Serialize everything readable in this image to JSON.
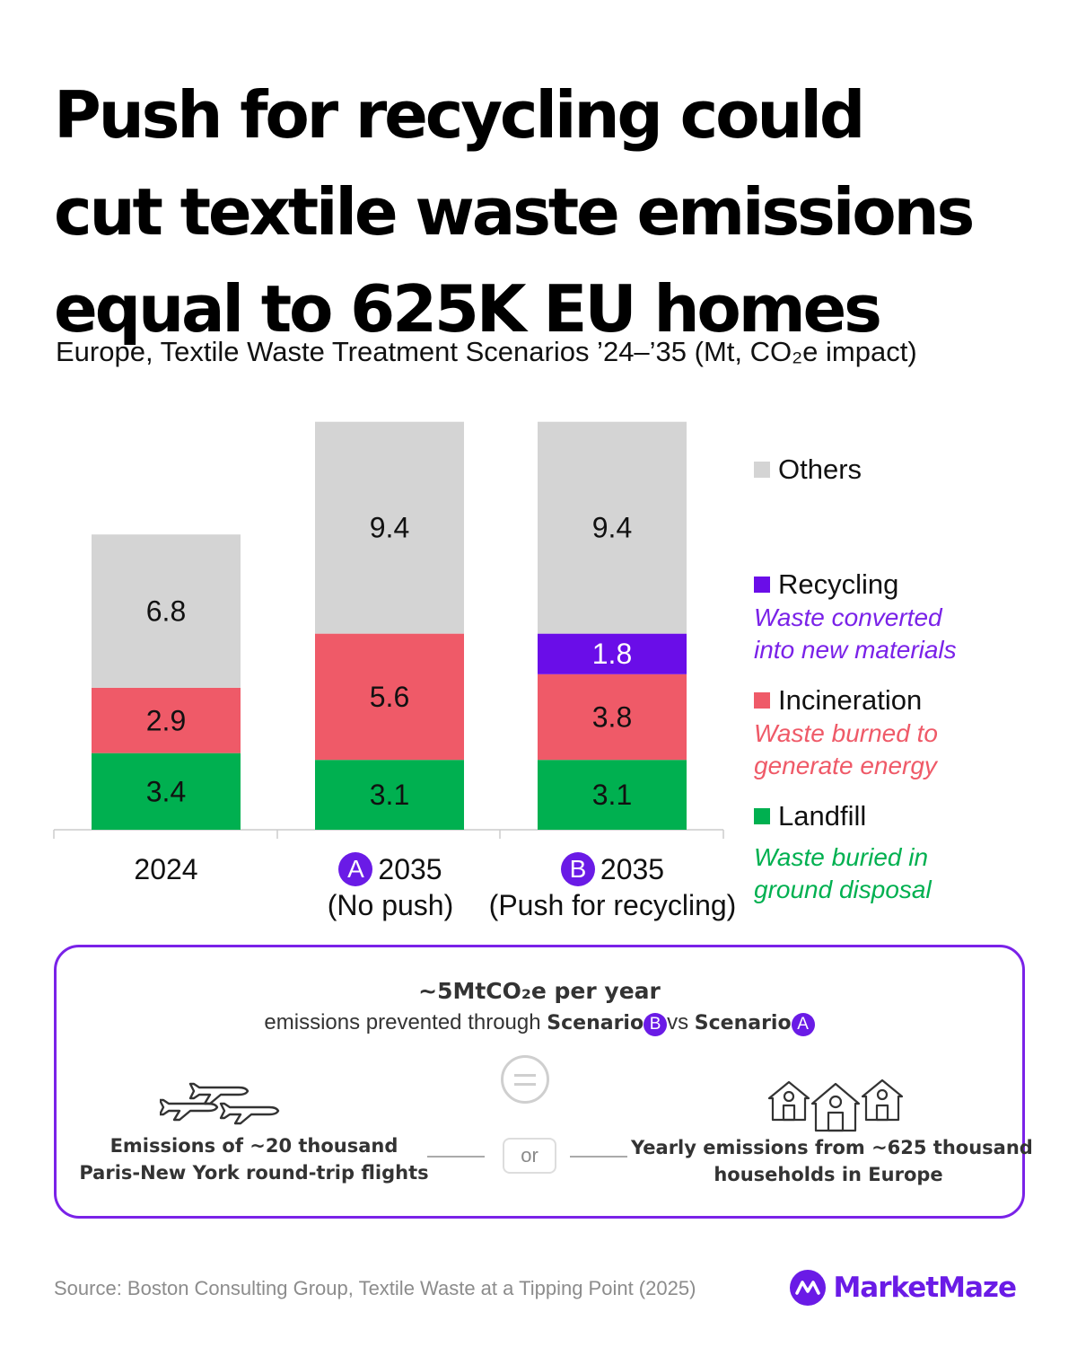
{
  "title_lines": [
    "Push for recycling could",
    "cut textile waste emissions",
    "equal to 625K EU homes"
  ],
  "subtitle": "Europe, Textile Waste Treatment Scenarios ’24–’35 (Mt, CO₂e impact)",
  "colors": {
    "others": "#d4d4d4",
    "recycling": "#6a0de8",
    "incineration": "#ef5a68",
    "landfill": "#00b050",
    "accent": "#7a22e8"
  },
  "chart_data": {
    "type": "bar",
    "stacked": true,
    "categories": [
      "2024",
      "2035 (No push)",
      "2035 (Push for recycling)"
    ],
    "series": [
      {
        "name": "Landfill",
        "values": [
          3.4,
          3.1,
          3.1
        ]
      },
      {
        "name": "Incineration",
        "values": [
          2.9,
          5.6,
          3.8
        ]
      },
      {
        "name": "Recycling",
        "values": [
          0,
          0,
          1.8
        ]
      },
      {
        "name": "Others",
        "values": [
          6.8,
          9.4,
          9.4
        ]
      }
    ],
    "legend_placement": "right"
  },
  "categories_display": [
    {
      "badge": "",
      "line1": "2024",
      "line2": ""
    },
    {
      "badge": "A",
      "line1": "2035",
      "line2": "(No push)"
    },
    {
      "badge": "B",
      "line1": "2035",
      "line2": "(Push for recycling)"
    }
  ],
  "legend": {
    "others": {
      "name": "Others",
      "desc1": "",
      "desc2": ""
    },
    "recycling": {
      "name": "Recycling",
      "desc1": "Waste converted",
      "desc2": "into new materials"
    },
    "incineration": {
      "name": "Incineration",
      "desc1": "Waste burned to",
      "desc2": "generate energy"
    },
    "landfill": {
      "name": "Landfill",
      "desc1": "Waste buried in",
      "desc2": "ground disposal"
    }
  },
  "callout": {
    "headline": "~5MtCO₂e per year",
    "subline_prefix": "emissions prevented through",
    "scenario_word": "Scenario",
    "badge_b": "B",
    "vs": "vs",
    "badge_a": "A",
    "left_line1": "Emissions of ~20 thousand",
    "left_line2": "Paris-New York round-trip flights",
    "or": "or",
    "right_line1": "Yearly emissions from ~625 thousand",
    "right_line2": "households in Europe",
    "left_icon": "airplanes-icon",
    "right_icon": "houses-icon",
    "middle_icon": "equals-icon"
  },
  "source": "Source: Boston Consulting Group, Textile Waste at a Tipping Point (2025)",
  "brand": {
    "name": "MarketMaze",
    "icon": "marketmaze-logo-icon"
  }
}
